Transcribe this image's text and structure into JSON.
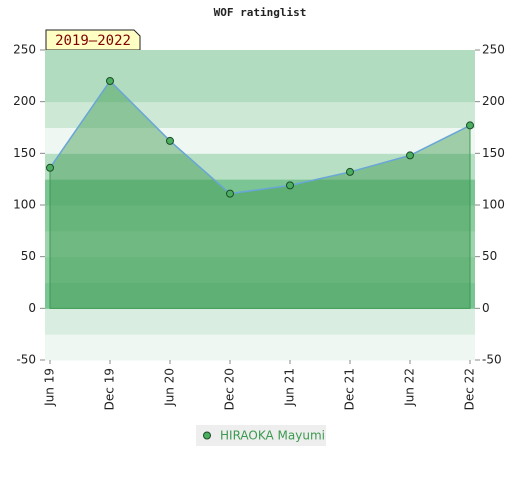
{
  "chart_data": {
    "type": "area",
    "title": "WOF ratinglist",
    "badge": "2019–2022",
    "categories": [
      "Jun 19",
      "Dec 19",
      "Jun 20",
      "Dec 20",
      "Jun 21",
      "Dec 21",
      "Jun 22",
      "Dec 22"
    ],
    "series": [
      {
        "name": "HIRAOKA Mayumi",
        "color": "#3c9a50",
        "values": [
          136,
          220,
          162,
          111,
          119,
          132,
          148,
          177
        ]
      }
    ],
    "ylim": [
      -50,
      250
    ],
    "yticks": [
      -50,
      0,
      50,
      100,
      150,
      200,
      250
    ],
    "y2lim": [
      -50,
      250
    ],
    "y2ticks": [
      -50,
      0,
      50,
      100,
      150,
      200,
      250
    ],
    "legend": "bottom"
  }
}
